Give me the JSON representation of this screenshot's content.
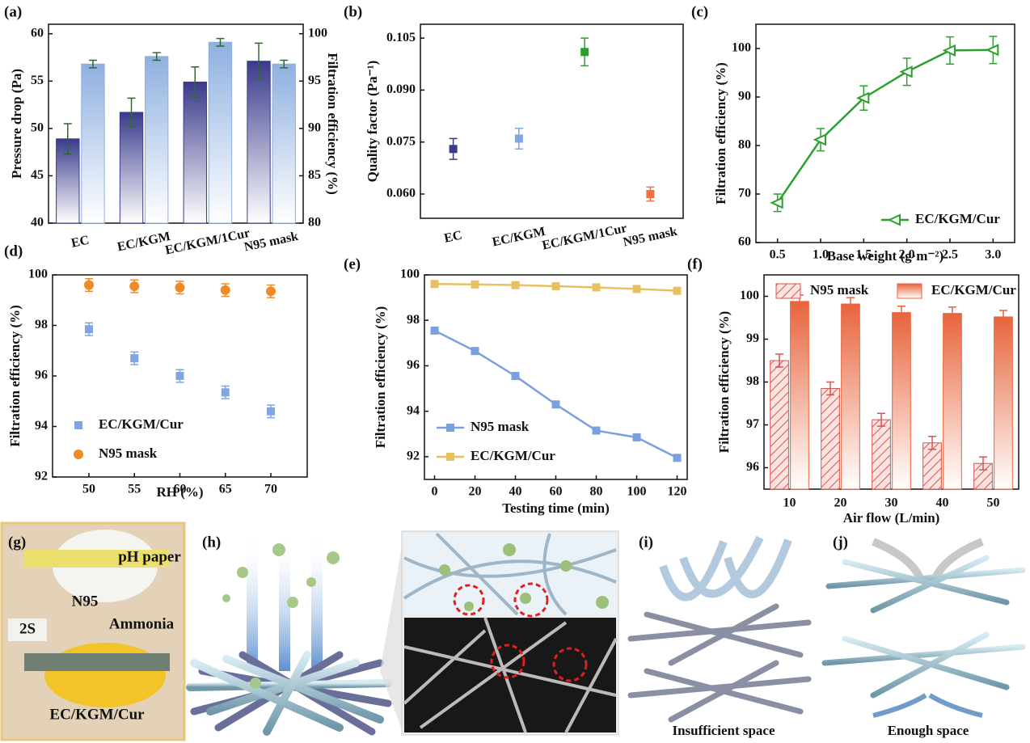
{
  "chart_data": [
    {
      "type": "bar",
      "label": "(a)",
      "categories": [
        "EC",
        "EC/KGM",
        "EC/KGM/1Cur",
        "N95 mask"
      ],
      "ylabel": "Pressure drop (Pa)",
      "y2label": "Filtration efficiency (%)",
      "ylim": [
        40,
        61
      ],
      "yticks": [
        40,
        45,
        50,
        55,
        60
      ],
      "y2lim": [
        80,
        101
      ],
      "y2ticks": [
        80,
        85,
        90,
        95,
        100
      ],
      "series": [
        {
          "color": "#3a3a8c",
          "axis": "y",
          "values": [
            48.9,
            51.7,
            54.9,
            57.1
          ],
          "errors": [
            1.6,
            1.5,
            1.6,
            1.9
          ]
        },
        {
          "color": "#8fb0e0",
          "axis": "y2",
          "values": [
            96.8,
            97.6,
            99.1,
            96.8
          ],
          "errors": [
            0.4,
            0.4,
            0.4,
            0.4
          ]
        }
      ]
    },
    {
      "type": "scatter",
      "label": "(b)",
      "categories": [
        "EC",
        "EC/KGM",
        "EC/KGM/1Cur",
        "N95 mask"
      ],
      "ylabel": "Quality factor (Pa⁻¹)",
      "ylim": [
        0.053,
        0.109
      ],
      "yticks": [
        {
          "value": 0.06,
          "label": "0.060"
        },
        {
          "value": 0.075,
          "label": "0.075"
        },
        {
          "value": 0.09,
          "label": "0.090"
        },
        {
          "value": 0.105,
          "label": "0.105"
        }
      ],
      "colors": [
        "#3a3a8c",
        "#7fa6e0",
        "#2ca02c",
        "#f07040"
      ],
      "series": [
        {
          "marker": "square",
          "values": [
            0.073,
            0.076,
            0.101,
            0.06
          ],
          "errors": [
            0.003,
            0.003,
            0.004,
            0.002
          ]
        }
      ]
    },
    {
      "type": "line",
      "label": "(c)",
      "xlabel": "Base weight (g·m⁻²)",
      "ylabel": "Filtration efficiency (%)",
      "x": [
        0.5,
        1,
        1.5,
        2,
        2.5,
        3
      ],
      "xlim": [
        0.25,
        3.25
      ],
      "xticks": [
        0.5,
        {
          "value": 1,
          "label": "1.0"
        },
        1.5,
        {
          "value": 2,
          "label": "2.0"
        },
        2.5,
        {
          "value": 3,
          "label": "3.0"
        }
      ],
      "ylim": [
        60,
        105
      ],
      "yticks": [
        60,
        70,
        80,
        90,
        100
      ],
      "legend": "lower right",
      "series": [
        {
          "name": "EC/KGM/Cur",
          "color": "#2ca02c",
          "marker": "triangle",
          "values": [
            68.2,
            81.2,
            89.8,
            95.2,
            99.6,
            99.7
          ],
          "errors": [
            1.8,
            2.3,
            2.5,
            2.8,
            2.8,
            2.8
          ]
        }
      ]
    },
    {
      "type": "scatter",
      "label": "(d)",
      "xlabel": "RH (%)",
      "ylabel": "Filtration efficiency (%)",
      "x": [
        50,
        55,
        60,
        65,
        70
      ],
      "xlim": [
        46,
        74
      ],
      "xticks": [
        50,
        55,
        60,
        65,
        70
      ],
      "ylim": [
        92,
        100
      ],
      "yticks": [
        92,
        94,
        96,
        98,
        100
      ],
      "legend": "lower left",
      "series": [
        {
          "name": "EC/KGM/Cur",
          "color": "#7fa6e0",
          "marker": "square",
          "values": [
            97.85,
            96.7,
            96.0,
            95.35,
            94.6
          ],
          "errors": [
            0.25,
            0.25,
            0.25,
            0.25,
            0.25
          ]
        },
        {
          "name": "N95 mask",
          "color": "#f08a24",
          "marker": "circle",
          "values": [
            99.6,
            99.55,
            99.5,
            99.4,
            99.35
          ],
          "errors": [
            0.25,
            0.25,
            0.25,
            0.25,
            0.25
          ]
        }
      ]
    },
    {
      "type": "line",
      "label": "(e)",
      "xlabel": "Testing time (min)",
      "ylabel": "Filtration efficiency (%)",
      "x": [
        0,
        20,
        40,
        60,
        80,
        100,
        120
      ],
      "xlim": [
        -5,
        125
      ],
      "xticks": [
        0,
        20,
        40,
        60,
        80,
        100,
        120
      ],
      "ylim": [
        91,
        100
      ],
      "yticks": [
        92,
        94,
        96,
        98,
        100
      ],
      "legend": "lower left",
      "series": [
        {
          "name": "N95 mask",
          "color": "#7ba0e0",
          "marker": "square",
          "values": [
            97.55,
            96.65,
            95.55,
            94.3,
            93.15,
            92.85,
            91.95
          ]
        },
        {
          "name": "EC/KGM/Cur",
          "color": "#e8c060",
          "marker": "square",
          "values": [
            99.6,
            99.58,
            99.55,
            99.5,
            99.45,
            99.38,
            99.3
          ]
        }
      ]
    },
    {
      "type": "bar",
      "label": "(f)",
      "xlabel": "Air flow (L/min)",
      "ylabel": "Filtration efficiency (%)",
      "categories": [
        "10",
        "20",
        "30",
        "40",
        "50"
      ],
      "ylim": [
        95.5,
        100.5
      ],
      "yticks": [
        96,
        97,
        98,
        99,
        100
      ],
      "legend": "top",
      "series": [
        {
          "name": "N95 mask",
          "color": "#d9534f",
          "pattern": "hatch",
          "values": [
            98.5,
            97.85,
            97.12,
            96.58,
            96.1
          ],
          "errors": [
            0.15,
            0.15,
            0.15,
            0.15,
            0.15
          ]
        },
        {
          "name": "EC/KGM/Cur",
          "color": "#e8643c",
          "values": [
            99.88,
            99.82,
            99.62,
            99.6,
            99.52
          ],
          "errors": [
            0.15,
            0.15,
            0.15,
            0.15,
            0.15
          ]
        }
      ]
    }
  ],
  "panels": {
    "g": {
      "label": "(g)",
      "texts": [
        "pH paper",
        "N95",
        "Ammonia",
        "2S",
        "EC/KGM/Cur"
      ]
    },
    "h": {
      "label": "(h)"
    },
    "i": {
      "label": "(i)",
      "caption": "Insufficient space"
    },
    "j": {
      "label": "(j)",
      "caption": "Enough space"
    }
  }
}
